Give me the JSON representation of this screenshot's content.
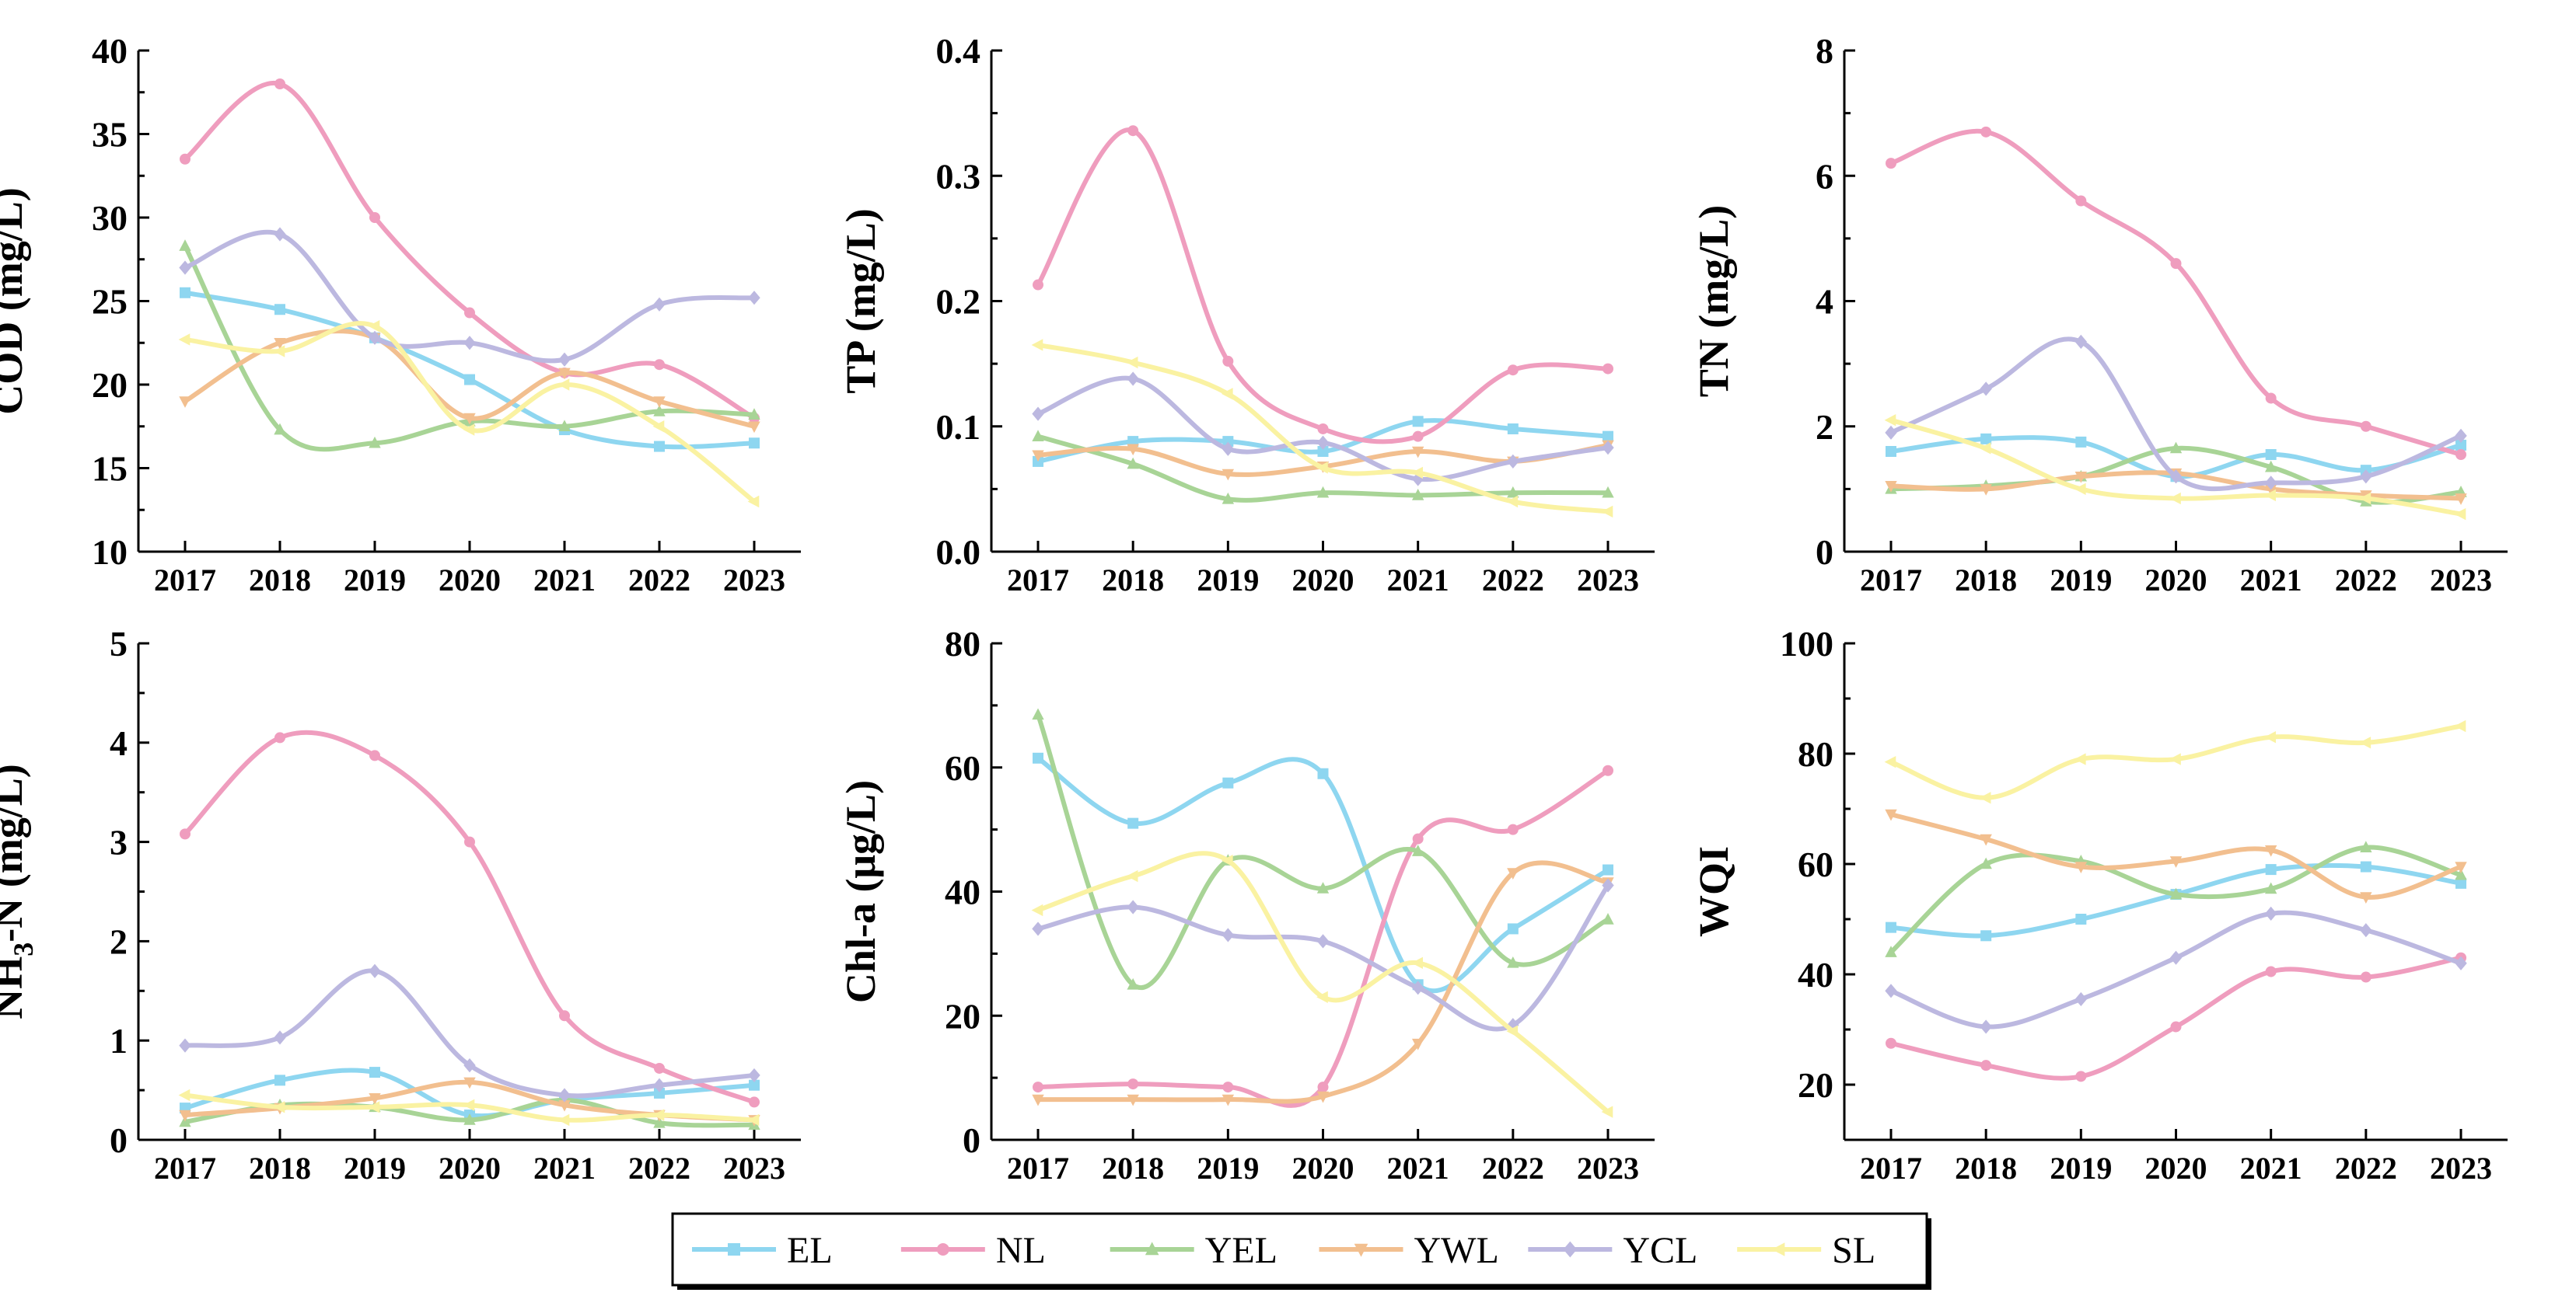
{
  "chart_data": [
    {
      "type": "line",
      "ylabel": "COD (mg/L)",
      "x": [
        "2017",
        "2018",
        "2019",
        "2020",
        "2021",
        "2022",
        "2023"
      ],
      "ylim": [
        10,
        40
      ],
      "yticks": [
        "10",
        "15",
        "20",
        "25",
        "30",
        "35",
        "40"
      ],
      "series": [
        {
          "name": "EL",
          "values": [
            25.5,
            24.5,
            22.8,
            20.3,
            17.3,
            16.3,
            16.5
          ]
        },
        {
          "name": "NL",
          "values": [
            33.5,
            38.0,
            30.0,
            24.3,
            20.7,
            21.2,
            18.0
          ]
        },
        {
          "name": "YEL",
          "values": [
            28.3,
            17.3,
            16.5,
            17.8,
            17.5,
            18.4,
            18.2
          ]
        },
        {
          "name": "YWL",
          "values": [
            19.0,
            22.5,
            22.8,
            18.0,
            20.7,
            19.0,
            17.5
          ]
        },
        {
          "name": "YCL",
          "values": [
            27.0,
            29.0,
            22.8,
            22.5,
            21.5,
            24.8,
            25.2
          ]
        },
        {
          "name": "SL",
          "values": [
            22.7,
            22.0,
            23.5,
            17.3,
            20.0,
            17.5,
            13.0
          ]
        }
      ]
    },
    {
      "type": "line",
      "ylabel": "TP (mg/L)",
      "x": [
        "2017",
        "2018",
        "2019",
        "2020",
        "2021",
        "2022",
        "2023"
      ],
      "ylim": [
        0,
        0.4
      ],
      "yticks": [
        "0.0",
        "0.1",
        "0.2",
        "0.3",
        "0.4"
      ],
      "series": [
        {
          "name": "EL",
          "values": [
            0.072,
            0.088,
            0.088,
            0.08,
            0.104,
            0.098,
            0.092
          ]
        },
        {
          "name": "NL",
          "values": [
            0.213,
            0.336,
            0.152,
            0.098,
            0.092,
            0.145,
            0.146
          ]
        },
        {
          "name": "YEL",
          "values": [
            0.092,
            0.07,
            0.042,
            0.047,
            0.045,
            0.047,
            0.047
          ]
        },
        {
          "name": "YWL",
          "values": [
            0.077,
            0.082,
            0.062,
            0.068,
            0.08,
            0.072,
            0.085
          ]
        },
        {
          "name": "YCL",
          "values": [
            0.11,
            0.138,
            0.082,
            0.087,
            0.058,
            0.072,
            0.083
          ]
        },
        {
          "name": "SL",
          "values": [
            0.165,
            0.151,
            0.126,
            0.067,
            0.063,
            0.04,
            0.032
          ]
        }
      ]
    },
    {
      "type": "line",
      "ylabel": "TN (mg/L)",
      "x": [
        "2017",
        "2018",
        "2019",
        "2020",
        "2021",
        "2022",
        "2023"
      ],
      "ylim": [
        0,
        8
      ],
      "yticks": [
        "0",
        "2",
        "4",
        "6",
        "8"
      ],
      "series": [
        {
          "name": "EL",
          "values": [
            1.6,
            1.8,
            1.75,
            1.2,
            1.55,
            1.3,
            1.7
          ]
        },
        {
          "name": "NL",
          "values": [
            6.2,
            6.7,
            5.6,
            4.6,
            2.45,
            2.0,
            1.55
          ]
        },
        {
          "name": "YEL",
          "values": [
            1.0,
            1.05,
            1.2,
            1.65,
            1.35,
            0.8,
            0.95
          ]
        },
        {
          "name": "YWL",
          "values": [
            1.05,
            1.0,
            1.2,
            1.25,
            1.0,
            0.9,
            0.85
          ]
        },
        {
          "name": "YCL",
          "values": [
            1.9,
            2.6,
            3.35,
            1.2,
            1.1,
            1.2,
            1.85
          ]
        },
        {
          "name": "SL",
          "values": [
            2.1,
            1.65,
            1.0,
            0.85,
            0.9,
            0.85,
            0.6
          ]
        }
      ]
    },
    {
      "type": "line",
      "ylabel": "NH3-N (mg/L)",
      "ylabel_main": "NH",
      "ylabel_sub": "3",
      "ylabel_rest": "-N (mg/L)",
      "x": [
        "2017",
        "2018",
        "2019",
        "2020",
        "2021",
        "2022",
        "2023"
      ],
      "ylim": [
        0,
        5
      ],
      "yticks": [
        "0",
        "1",
        "2",
        "3",
        "4",
        "5"
      ],
      "series": [
        {
          "name": "EL",
          "values": [
            0.32,
            0.6,
            0.68,
            0.25,
            0.4,
            0.47,
            0.55
          ]
        },
        {
          "name": "NL",
          "values": [
            3.08,
            4.05,
            3.87,
            3.0,
            1.25,
            0.72,
            0.38
          ]
        },
        {
          "name": "YEL",
          "values": [
            0.18,
            0.35,
            0.33,
            0.2,
            0.4,
            0.17,
            0.15
          ]
        },
        {
          "name": "YWL",
          "values": [
            0.25,
            0.32,
            0.42,
            0.58,
            0.35,
            0.25,
            0.2
          ]
        },
        {
          "name": "YCL",
          "values": [
            0.95,
            1.03,
            1.7,
            0.75,
            0.45,
            0.55,
            0.65
          ]
        },
        {
          "name": "SL",
          "values": [
            0.45,
            0.33,
            0.33,
            0.35,
            0.2,
            0.25,
            0.2
          ]
        }
      ]
    },
    {
      "type": "line",
      "ylabel": "Chl-a (μg/L)",
      "x": [
        "2017",
        "2018",
        "2019",
        "2020",
        "2021",
        "2022",
        "2023"
      ],
      "ylim": [
        0,
        80
      ],
      "yticks": [
        "0",
        "20",
        "40",
        "60",
        "80"
      ],
      "series": [
        {
          "name": "EL",
          "values": [
            61.5,
            51.0,
            57.5,
            59.0,
            25.0,
            34.0,
            43.5
          ]
        },
        {
          "name": "NL",
          "values": [
            8.5,
            9.0,
            8.5,
            8.5,
            48.5,
            50.0,
            59.5
          ]
        },
        {
          "name": "YEL",
          "values": [
            68.5,
            25.0,
            45.0,
            40.5,
            46.5,
            28.5,
            35.5
          ]
        },
        {
          "name": "YWL",
          "values": [
            6.5,
            6.5,
            6.5,
            7.0,
            15.5,
            43.0,
            41.5
          ]
        },
        {
          "name": "YCL",
          "values": [
            34.0,
            37.5,
            33.0,
            32.0,
            24.5,
            18.5,
            41.0
          ]
        },
        {
          "name": "SL",
          "values": [
            37.0,
            42.5,
            45.0,
            23.0,
            28.5,
            17.5,
            4.5
          ]
        }
      ]
    },
    {
      "type": "line",
      "ylabel": "WQI",
      "x": [
        "2017",
        "2018",
        "2019",
        "2020",
        "2021",
        "2022",
        "2023"
      ],
      "ylim": [
        10,
        100
      ],
      "yticks": [
        "20",
        "40",
        "60",
        "80",
        "100"
      ],
      "series": [
        {
          "name": "EL",
          "values": [
            48.5,
            47.0,
            50.0,
            54.5,
            59.0,
            59.5,
            56.5
          ]
        },
        {
          "name": "NL",
          "values": [
            27.5,
            23.5,
            21.5,
            30.5,
            40.5,
            39.5,
            43.0
          ]
        },
        {
          "name": "YEL",
          "values": [
            44.0,
            60.0,
            60.5,
            54.5,
            55.5,
            63.0,
            58.0
          ]
        },
        {
          "name": "YWL",
          "values": [
            69.0,
            64.5,
            59.5,
            60.5,
            62.5,
            54.0,
            59.5
          ]
        },
        {
          "name": "YCL",
          "values": [
            37.0,
            30.5,
            35.5,
            43.0,
            51.0,
            48.0,
            42.0
          ]
        },
        {
          "name": "SL",
          "values": [
            78.5,
            72.0,
            79.0,
            79.0,
            83.0,
            82.0,
            85.0
          ]
        }
      ]
    }
  ],
  "legend": {
    "placement": "bottom-center",
    "items": [
      {
        "name": "EL",
        "color": "#8ed6f0",
        "marker": "square"
      },
      {
        "name": "NL",
        "color": "#ef9dbe",
        "marker": "circle"
      },
      {
        "name": "YEL",
        "color": "#a8d496",
        "marker": "triangle-up"
      },
      {
        "name": "YWL",
        "color": "#f2bf8f",
        "marker": "triangle-down"
      },
      {
        "name": "YCL",
        "color": "#bcb8e0",
        "marker": "diamond"
      },
      {
        "name": "SL",
        "color": "#faf2a2",
        "marker": "triangle-left"
      }
    ]
  }
}
